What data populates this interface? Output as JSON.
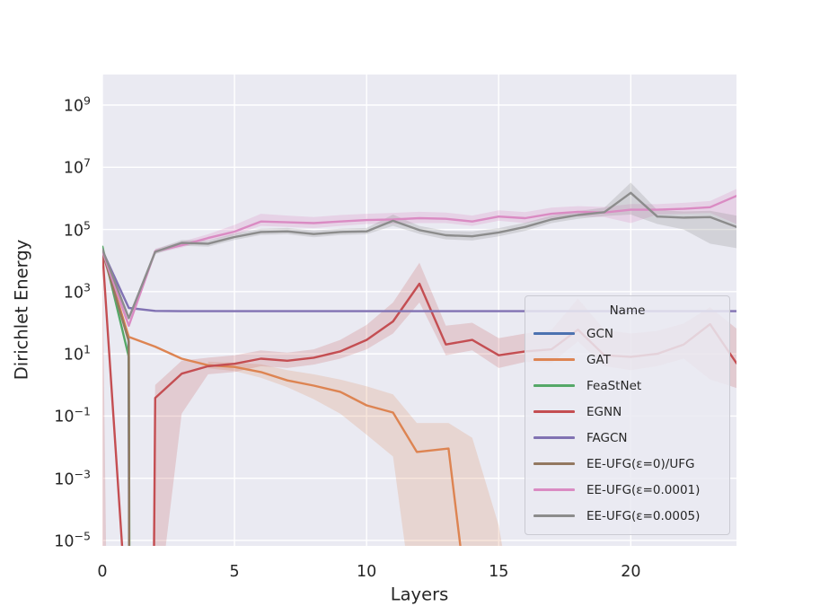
{
  "chart_data": {
    "type": "line",
    "title": "",
    "xlabel": "Layers",
    "ylabel": "Dirichlet Energy",
    "x_axis": "linear",
    "y_axis": "log",
    "xlim": [
      0,
      24
    ],
    "ylim_exponents": [
      -5.2,
      10.0
    ],
    "grid": true,
    "y_tick_base": "10",
    "y_ticks": [
      {
        "exp": 9,
        "label": "9"
      },
      {
        "exp": 7,
        "label": "7"
      },
      {
        "exp": 5,
        "label": "5"
      },
      {
        "exp": 3,
        "label": "3"
      },
      {
        "exp": 1,
        "label": "1"
      },
      {
        "exp": -1,
        "label": "−1"
      },
      {
        "exp": -3,
        "label": "−3"
      },
      {
        "exp": -5,
        "label": "−5"
      }
    ],
    "x_ticks": [
      {
        "v": 0,
        "label": "0"
      },
      {
        "v": 5,
        "label": "5"
      },
      {
        "v": 10,
        "label": "10"
      },
      {
        "v": 15,
        "label": "15"
      },
      {
        "v": 20,
        "label": "20"
      }
    ],
    "legend": {
      "title": "Name",
      "position": "lower right"
    },
    "style": {
      "plot_bg": "#eaeaf2",
      "grid_color": "#ffffff",
      "text_color": "#262626"
    },
    "series": [
      {
        "id": "gcn",
        "name": "GCN",
        "color": "#4c72b0",
        "points": [
          [
            0,
            22000
          ],
          [
            0.99,
            30
          ],
          [
            1.02,
            1e-08
          ]
        ]
      },
      {
        "id": "gat",
        "name": "GAT",
        "color": "#dd8452",
        "points": [
          [
            0,
            20000
          ],
          [
            1,
            35
          ],
          [
            2,
            17
          ],
          [
            3,
            7
          ],
          [
            4,
            4.3
          ],
          [
            5,
            3.8
          ],
          [
            6,
            2.6
          ],
          [
            7,
            1.4
          ],
          [
            8,
            0.95
          ],
          [
            9,
            0.6
          ],
          [
            10,
            0.22
          ],
          [
            11,
            0.13
          ],
          [
            11.9,
            0.007
          ],
          [
            13.1,
            0.009
          ],
          [
            13.95,
            1e-08
          ]
        ]
      },
      {
        "id": "feastnet",
        "name": "FeaStNet",
        "color": "#55a868",
        "points": [
          [
            0,
            28000
          ],
          [
            1,
            8
          ],
          [
            1.03,
            1e-08
          ]
        ]
      },
      {
        "id": "egnn",
        "name": "EGNN",
        "color": "#c44e52",
        "points": [
          [
            0,
            20000
          ],
          [
            0.97,
            1e-08
          ],
          [
            1.93,
            1e-08
          ],
          [
            2,
            0.38
          ],
          [
            3,
            2.3
          ],
          [
            4,
            4
          ],
          [
            5,
            4.8
          ],
          [
            6,
            7
          ],
          [
            7,
            6
          ],
          [
            8,
            7.5
          ],
          [
            9,
            12
          ],
          [
            10,
            28
          ],
          [
            11,
            110
          ],
          [
            12,
            1800
          ],
          [
            13,
            20
          ],
          [
            14,
            28
          ],
          [
            15,
            9
          ],
          [
            16,
            12
          ],
          [
            17,
            14
          ],
          [
            18,
            60
          ],
          [
            19,
            9
          ],
          [
            20,
            8
          ],
          [
            21,
            10
          ],
          [
            22,
            20
          ],
          [
            23,
            90
          ],
          [
            24,
            5
          ]
        ]
      },
      {
        "id": "fagcn",
        "name": "FAGCN",
        "color": "#8172b3",
        "points": [
          [
            0,
            21000
          ],
          [
            1,
            300
          ],
          [
            2,
            240
          ],
          [
            3,
            235
          ],
          [
            8,
            235
          ],
          [
            16,
            235
          ],
          [
            24,
            235
          ]
        ]
      },
      {
        "id": "ee-ufg-eps0",
        "name": "EE-UFG(ε=0)/UFG",
        "color": "#937860",
        "points": [
          [
            0,
            19000
          ],
          [
            1,
            25
          ],
          [
            1.02,
            1e-08
          ]
        ]
      },
      {
        "id": "ee-ufg-eps0001",
        "name": "EE-UFG(ε=0.0001)",
        "color": "#da8bc3",
        "points": [
          [
            0,
            20000
          ],
          [
            1,
            80
          ],
          [
            2,
            20000
          ],
          [
            3,
            31000
          ],
          [
            4,
            53000
          ],
          [
            5,
            85000
          ],
          [
            6,
            180000
          ],
          [
            7,
            170000
          ],
          [
            8,
            160000
          ],
          [
            9,
            180000
          ],
          [
            10,
            200000
          ],
          [
            11,
            210000
          ],
          [
            12,
            230000
          ],
          [
            13,
            220000
          ],
          [
            14,
            180000
          ],
          [
            15,
            260000
          ],
          [
            16,
            230000
          ],
          [
            17,
            320000
          ],
          [
            18,
            370000
          ],
          [
            19,
            350000
          ],
          [
            20,
            430000
          ],
          [
            21,
            430000
          ],
          [
            22,
            460000
          ],
          [
            23,
            520000
          ],
          [
            24,
            1200000
          ]
        ]
      },
      {
        "id": "ee-ufg-eps0005",
        "name": "EE-UFG(ε=0.0005)",
        "color": "#8c8c8c",
        "points": [
          [
            0,
            23000
          ],
          [
            1,
            140
          ],
          [
            2,
            19000
          ],
          [
            3,
            37000
          ],
          [
            4,
            35000
          ],
          [
            5,
            57000
          ],
          [
            6,
            83000
          ],
          [
            7,
            87000
          ],
          [
            8,
            71000
          ],
          [
            9,
            83000
          ],
          [
            10,
            87000
          ],
          [
            11,
            190000
          ],
          [
            12,
            95000
          ],
          [
            13,
            65000
          ],
          [
            14,
            60000
          ],
          [
            15,
            80000
          ],
          [
            16,
            120000
          ],
          [
            17,
            210000
          ],
          [
            18,
            290000
          ],
          [
            19,
            360000
          ],
          [
            20,
            1500000
          ],
          [
            21,
            260000
          ],
          [
            22,
            240000
          ],
          [
            23,
            250000
          ],
          [
            24,
            120000
          ]
        ]
      }
    ],
    "bands": [
      {
        "series": "gat",
        "color": "#dd8452",
        "alpha": 0.2,
        "points": [
          [
            4,
            3.4,
            5.6
          ],
          [
            5,
            2.8,
            5.2
          ],
          [
            6,
            1.7,
            4.6
          ],
          [
            7,
            0.85,
            3
          ],
          [
            8,
            0.35,
            2.2
          ],
          [
            9,
            0.12,
            1.5
          ],
          [
            10,
            0.025,
            0.9
          ],
          [
            11,
            0.005,
            0.5
          ],
          [
            11.9,
            1e-08,
            0.06
          ],
          [
            13.1,
            1e-08,
            0.06
          ],
          [
            14,
            1e-08,
            0.02
          ],
          [
            15,
            1e-08,
            3e-05
          ],
          [
            15.7,
            1e-08,
            1e-08
          ]
        ]
      },
      {
        "series": "egnn",
        "color": "#c44e52",
        "alpha": 0.2,
        "points": [
          [
            0,
            1e-08,
            21000
          ],
          [
            0.18,
            1e-08,
            1e-08
          ]
        ]
      },
      {
        "series": "egnn",
        "color": "#c44e52",
        "alpha": 0.2,
        "points": [
          [
            1.85,
            1e-08,
            1e-08
          ],
          [
            2,
            1e-08,
            1
          ],
          [
            3,
            0.12,
            6
          ],
          [
            4,
            2.2,
            7.5
          ],
          [
            5,
            2.6,
            9
          ],
          [
            6,
            4,
            13
          ],
          [
            7,
            3.5,
            11
          ],
          [
            8,
            4.5,
            14
          ],
          [
            9,
            7,
            28
          ],
          [
            10,
            14,
            85
          ],
          [
            11,
            45,
            450
          ],
          [
            12,
            450,
            8500
          ],
          [
            13,
            9,
            80
          ],
          [
            14,
            13,
            100
          ],
          [
            15,
            3.5,
            32
          ],
          [
            16,
            5.5,
            45
          ],
          [
            17,
            5,
            60
          ],
          [
            18,
            25,
            600
          ],
          [
            19,
            4,
            60
          ],
          [
            20,
            3,
            45
          ],
          [
            21,
            4,
            55
          ],
          [
            22,
            7,
            95
          ],
          [
            23,
            1.5,
            320
          ],
          [
            24,
            0.8,
            65
          ]
        ]
      },
      {
        "series": "ee-ufg-eps0001",
        "color": "#da8bc3",
        "alpha": 0.25,
        "points": [
          [
            2,
            17000,
            24000
          ],
          [
            3,
            26000,
            40000
          ],
          [
            4,
            44000,
            70000
          ],
          [
            5,
            65000,
            140000
          ],
          [
            6,
            130000,
            320000
          ],
          [
            7,
            120000,
            280000
          ],
          [
            8,
            110000,
            250000
          ],
          [
            9,
            130000,
            290000
          ],
          [
            10,
            150000,
            320000
          ],
          [
            11,
            150000,
            340000
          ],
          [
            12,
            160000,
            370000
          ],
          [
            13,
            160000,
            350000
          ],
          [
            14,
            130000,
            280000
          ],
          [
            15,
            190000,
            410000
          ],
          [
            16,
            160000,
            360000
          ],
          [
            17,
            230000,
            500000
          ],
          [
            18,
            260000,
            560000
          ],
          [
            19,
            250000,
            530000
          ],
          [
            20,
            160000,
            660000
          ],
          [
            21,
            300000,
            650000
          ],
          [
            22,
            320000,
            720000
          ],
          [
            23,
            340000,
            820000
          ],
          [
            24,
            150000,
            2000000
          ]
        ]
      },
      {
        "series": "ee-ufg-eps0005",
        "color": "#8c8c8c",
        "alpha": 0.25,
        "points": [
          [
            2,
            16000,
            23000
          ],
          [
            3,
            30000,
            46000
          ],
          [
            4,
            28000,
            44000
          ],
          [
            5,
            46000,
            74000
          ],
          [
            6,
            66000,
            106000
          ],
          [
            7,
            70000,
            112000
          ],
          [
            8,
            56000,
            92000
          ],
          [
            9,
            66000,
            106000
          ],
          [
            10,
            70000,
            112000
          ],
          [
            11,
            130000,
            300000
          ],
          [
            12,
            72000,
            130000
          ],
          [
            13,
            48000,
            90000
          ],
          [
            14,
            44000,
            86000
          ],
          [
            15,
            60000,
            110000
          ],
          [
            16,
            90000,
            165000
          ],
          [
            17,
            160000,
            280000
          ],
          [
            18,
            220000,
            390000
          ],
          [
            19,
            270000,
            500000
          ],
          [
            20,
            300000,
            3200000
          ],
          [
            21,
            150000,
            420000
          ],
          [
            22,
            100000,
            380000
          ],
          [
            23,
            35000,
            400000
          ],
          [
            24,
            25000,
            280000
          ]
        ]
      }
    ]
  }
}
